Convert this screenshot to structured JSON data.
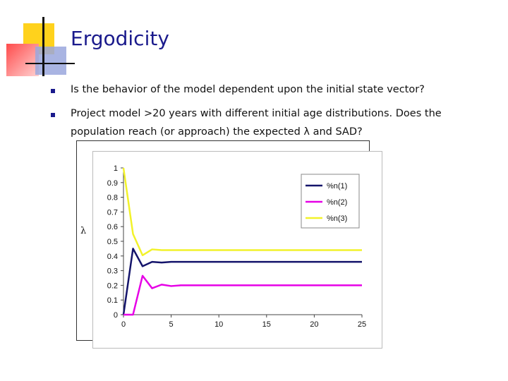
{
  "slide": {
    "title": "Ergodicity",
    "bullets": [
      {
        "line1": "Is the behavior of the model dependent upon the initial state vector?"
      },
      {
        "line1": "Project model >20 years with different initial age distributions.  Does the",
        "line2": "population reach (or approach) the expected λ and SAD?"
      }
    ],
    "colors": {
      "title": "#1a1a8c",
      "accent_yellow": "#ffd21c",
      "accent_red": "#ff4b4b",
      "accent_blue": "#9aa7dd"
    }
  },
  "chart_data": {
    "type": "line",
    "title": "",
    "xlabel": "",
    "ylabel": "λ",
    "xlim": [
      0,
      25
    ],
    "ylim": [
      0,
      1
    ],
    "x_ticks": [
      0,
      5,
      10,
      15,
      20,
      25
    ],
    "y_ticks": [
      0,
      0.1,
      0.2,
      0.3,
      0.4,
      0.5,
      0.6,
      0.7,
      0.8,
      0.9,
      1
    ],
    "y_tick_labels": [
      "0",
      "0.1",
      "0.2",
      "0.3",
      "0.4",
      "0.5",
      "0.6",
      "0.7",
      "0.8",
      "0.9",
      "1"
    ],
    "grid": false,
    "legend_position": "top-right",
    "x": [
      0,
      1,
      2,
      3,
      4,
      5,
      6,
      7,
      8,
      9,
      10,
      11,
      12,
      13,
      14,
      15,
      16,
      17,
      18,
      19,
      20,
      21,
      22,
      23,
      24,
      25
    ],
    "series": [
      {
        "name": "%n(1)",
        "color": "#14146b",
        "values": [
          0,
          0.45,
          0.33,
          0.36,
          0.355,
          0.36,
          0.36,
          0.36,
          0.36,
          0.36,
          0.36,
          0.36,
          0.36,
          0.36,
          0.36,
          0.36,
          0.36,
          0.36,
          0.36,
          0.36,
          0.36,
          0.36,
          0.36,
          0.36,
          0.36,
          0.36
        ]
      },
      {
        "name": "%n(2)",
        "color": "#e600e6",
        "values": [
          0,
          0,
          0.265,
          0.18,
          0.205,
          0.195,
          0.2,
          0.2,
          0.2,
          0.2,
          0.2,
          0.2,
          0.2,
          0.2,
          0.2,
          0.2,
          0.2,
          0.2,
          0.2,
          0.2,
          0.2,
          0.2,
          0.2,
          0.2,
          0.2,
          0.2
        ]
      },
      {
        "name": "%n(3)",
        "color": "#f2f22a",
        "values": [
          1,
          0.55,
          0.405,
          0.445,
          0.44,
          0.44,
          0.44,
          0.44,
          0.44,
          0.44,
          0.44,
          0.44,
          0.44,
          0.44,
          0.44,
          0.44,
          0.44,
          0.44,
          0.44,
          0.44,
          0.44,
          0.44,
          0.44,
          0.44,
          0.44,
          0.44
        ]
      }
    ]
  }
}
